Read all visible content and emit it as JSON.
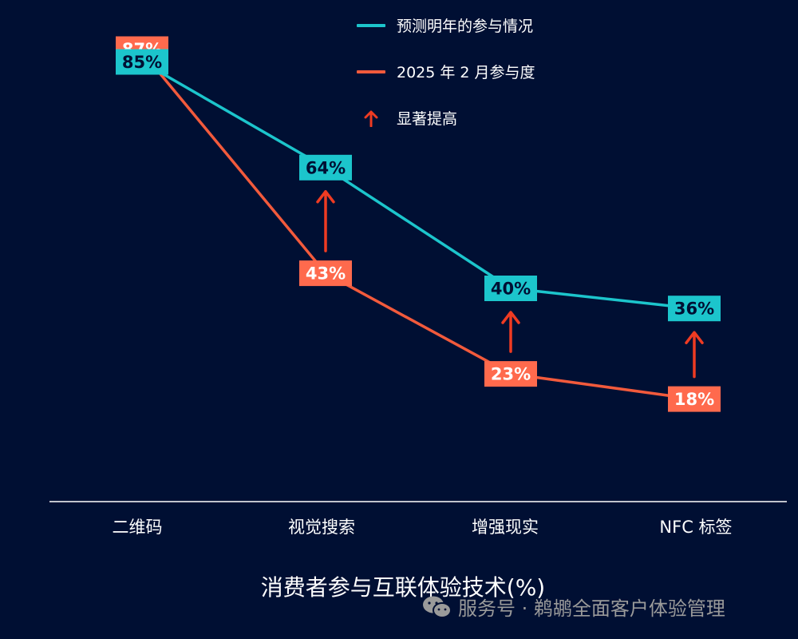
{
  "chart_data": {
    "type": "line",
    "categories": [
      "二维码",
      "视觉搜索",
      "增强现实",
      "NFC 标签"
    ],
    "series": [
      {
        "name": "预测明年的参与情况",
        "values": [
          85,
          64,
          40,
          36
        ],
        "labels": [
          "85%",
          "64%",
          "40%",
          "36%"
        ],
        "color": "#1cc5cc"
      },
      {
        "name": "2025 年 2 月参与度",
        "values": [
          87,
          43,
          23,
          18
        ],
        "labels": [
          "87%",
          "43%",
          "23%",
          "18%"
        ],
        "color": "#f25a3c"
      }
    ],
    "annotation_legend": "显著提高",
    "arrow_color": "#ef3b22",
    "label_colors": {
      "forecast_box": "#1cc5cc",
      "forecast_text": "#000f33",
      "current_box": "#ff6a4d",
      "current_text": "#ffffff"
    },
    "title": "消费者参与互联体验技术(%)",
    "ylim": [
      0,
      100
    ],
    "grid": false,
    "legend_position": "top-center"
  },
  "watermark": "服务号 · 鹈鹕全面客户体验管理"
}
